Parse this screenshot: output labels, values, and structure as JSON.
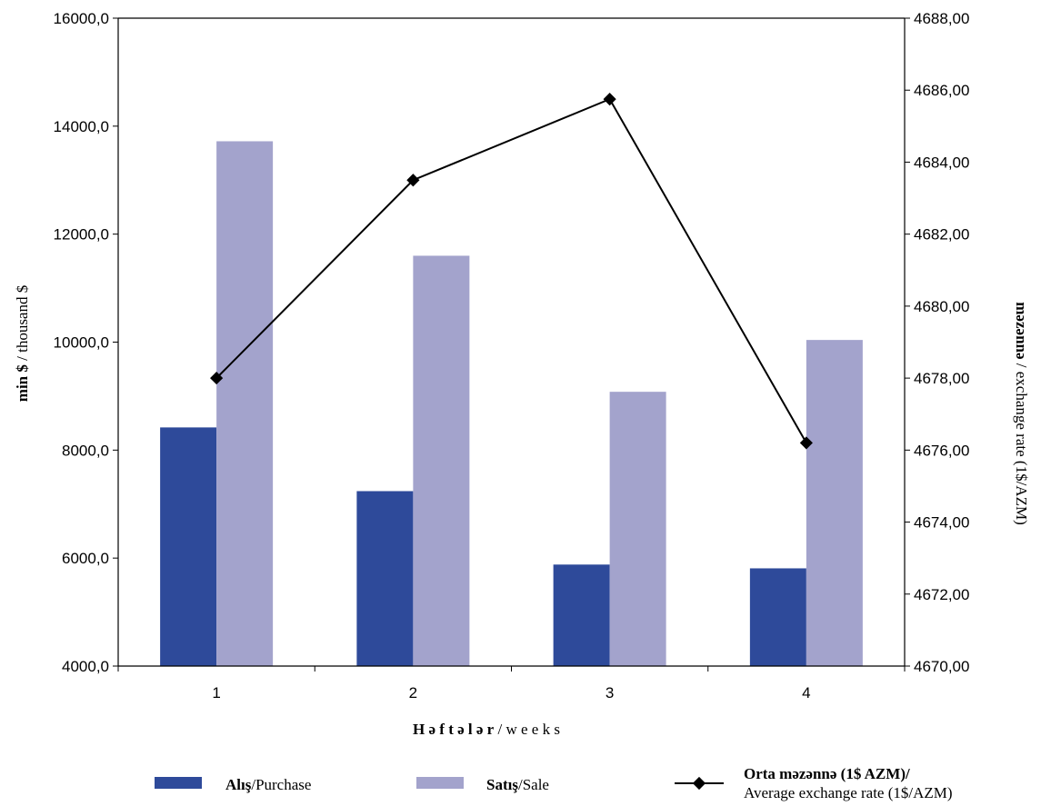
{
  "chart_data": {
    "type": "bar",
    "categories": [
      "1",
      "2",
      "3",
      "4"
    ],
    "series": [
      {
        "name": "Alış/Purchase",
        "axis": "left",
        "kind": "bar",
        "color": "#2e4a9a",
        "values": [
          8420,
          7240,
          5880,
          5810
        ]
      },
      {
        "name": "Satış/Sale",
        "axis": "left",
        "kind": "bar",
        "color": "#a3a3cc",
        "values": [
          13720,
          11600,
          9080,
          10040
        ]
      },
      {
        "name": "Orta məzənnə (1$ AZM)/ Average exchange rate (1$/AZM)",
        "axis": "right",
        "kind": "line",
        "color": "#000000",
        "marker": "diamond",
        "values": [
          4678.0,
          4683.5,
          4685.75,
          4676.2
        ]
      }
    ],
    "ylim": [
      4000,
      16000
    ],
    "y_ticks": [
      "4000,0",
      "6000,0",
      "8000,0",
      "10000,0",
      "12000,0",
      "14000,0",
      "16000,0"
    ],
    "y2lim": [
      4670,
      4688
    ],
    "y2_ticks": [
      "4670,00",
      "4672,00",
      "4674,00",
      "4676,00",
      "4678,00",
      "4680,00",
      "4682,00",
      "4684,00",
      "4686,00",
      "4688,00"
    ],
    "xlabel": {
      "bold": "H ə f t ə l ə r",
      "normal": " / w e e k s"
    },
    "ylabel": {
      "bold": "min $",
      "normal": " / thousand $"
    },
    "y2label": {
      "bold": "məzənnə",
      "normal": " / exchange rate (1$/AZM)"
    },
    "legend": {
      "position": "bottom",
      "items": [
        {
          "bold": "Alış",
          "normal": "/Purchase",
          "symbol": "bar",
          "color": "#2e4a9a"
        },
        {
          "bold": "Satış",
          "normal": "/Sale",
          "symbol": "bar",
          "color": "#a3a3cc"
        },
        {
          "bold": "Orta məzənnə (1$ AZM)/",
          "normal": "Average exchange rate (1$/AZM)",
          "symbol": "line-diamond",
          "color": "#000000"
        }
      ]
    },
    "grid": false
  }
}
